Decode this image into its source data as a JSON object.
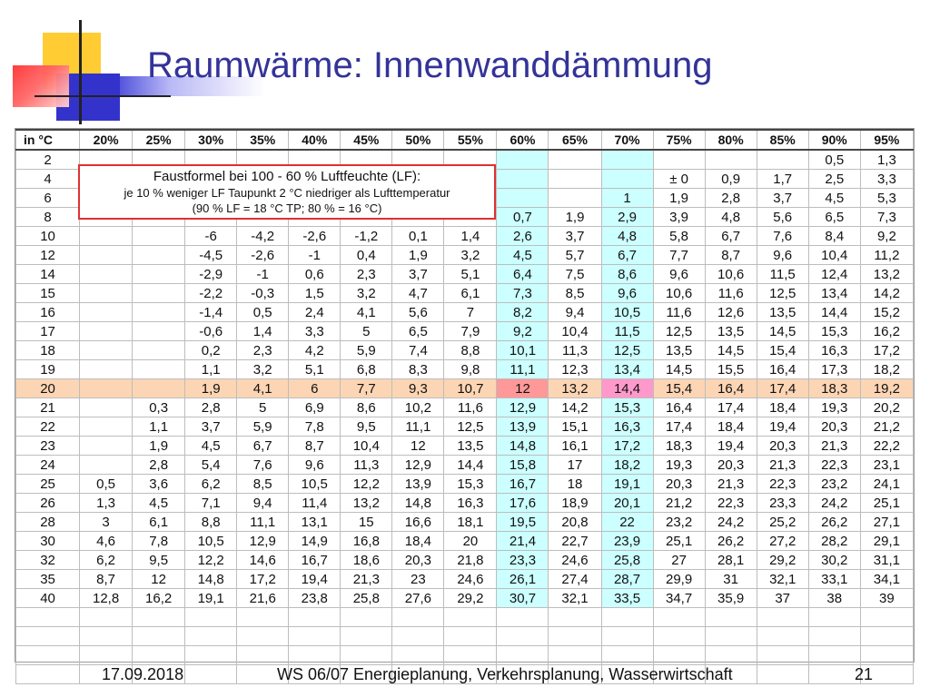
{
  "slide": {
    "title": "Raumwärme: Innenwanddämmung",
    "footer": {
      "date": "17.09.2018",
      "course": "WS 06/07 Energieplanung, Verkehrsplanung, Wasserwirtschaft",
      "page": "21"
    }
  },
  "annotation": {
    "line1": "Faustformel bei 100 -  60 % Luftfeuchte (LF):",
    "line2": "je 10 % weniger LF Taupunkt 2 °C niedriger als Lufttemperatur",
    "line3": "(90 % LF = 18 °C TP; 80 % = 16 °C)"
  },
  "table": {
    "corner": "in °C",
    "headers": [
      "20%",
      "25%",
      "30%",
      "35%",
      "40%",
      "45%",
      "50%",
      "55%",
      "60%",
      "65%",
      "70%",
      "75%",
      "80%",
      "85%",
      "90%",
      "95%"
    ],
    "highlight_row": "20",
    "rows": [
      {
        "t": "2",
        "v": [
          "",
          "",
          "",
          "",
          "",
          "",
          "",
          "",
          "",
          "",
          "",
          "",
          "",
          "",
          "0,5",
          "1,3"
        ]
      },
      {
        "t": "4",
        "v": [
          "",
          "",
          "",
          "",
          "",
          "",
          "",
          "",
          "",
          "",
          "",
          "± 0",
          "0,9",
          "1,7",
          "2,5",
          "3,3"
        ]
      },
      {
        "t": "6",
        "v": [
          "",
          "",
          "",
          "",
          "",
          "",
          "",
          "",
          "",
          "",
          "1",
          "1,9",
          "2,8",
          "3,7",
          "4,5",
          "5,3"
        ]
      },
      {
        "t": "8",
        "v": [
          "",
          "",
          "",
          "",
          "",
          "",
          "",
          "",
          "0,7",
          "1,9",
          "2,9",
          "3,9",
          "4,8",
          "5,6",
          "6,5",
          "7,3"
        ]
      },
      {
        "t": "10",
        "v": [
          "",
          "",
          "-6",
          "-4,2",
          "-2,6",
          "-1,2",
          "0,1",
          "1,4",
          "2,6",
          "3,7",
          "4,8",
          "5,8",
          "6,7",
          "7,6",
          "8,4",
          "9,2"
        ]
      },
      {
        "t": "12",
        "v": [
          "",
          "",
          "-4,5",
          "-2,6",
          "-1",
          "0,4",
          "1,9",
          "3,2",
          "4,5",
          "5,7",
          "6,7",
          "7,7",
          "8,7",
          "9,6",
          "10,4",
          "11,2"
        ]
      },
      {
        "t": "14",
        "v": [
          "",
          "",
          "-2,9",
          "-1",
          "0,6",
          "2,3",
          "3,7",
          "5,1",
          "6,4",
          "7,5",
          "8,6",
          "9,6",
          "10,6",
          "11,5",
          "12,4",
          "13,2"
        ]
      },
      {
        "t": "15",
        "v": [
          "",
          "",
          "-2,2",
          "-0,3",
          "1,5",
          "3,2",
          "4,7",
          "6,1",
          "7,3",
          "8,5",
          "9,6",
          "10,6",
          "11,6",
          "12,5",
          "13,4",
          "14,2"
        ]
      },
      {
        "t": "16",
        "v": [
          "",
          "",
          "-1,4",
          "0,5",
          "2,4",
          "4,1",
          "5,6",
          "7",
          "8,2",
          "9,4",
          "10,5",
          "11,6",
          "12,6",
          "13,5",
          "14,4",
          "15,2"
        ]
      },
      {
        "t": "17",
        "v": [
          "",
          "",
          "-0,6",
          "1,4",
          "3,3",
          "5",
          "6,5",
          "7,9",
          "9,2",
          "10,4",
          "11,5",
          "12,5",
          "13,5",
          "14,5",
          "15,3",
          "16,2"
        ]
      },
      {
        "t": "18",
        "v": [
          "",
          "",
          "0,2",
          "2,3",
          "4,2",
          "5,9",
          "7,4",
          "8,8",
          "10,1",
          "11,3",
          "12,5",
          "13,5",
          "14,5",
          "15,4",
          "16,3",
          "17,2"
        ]
      },
      {
        "t": "19",
        "v": [
          "",
          "",
          "1,1",
          "3,2",
          "5,1",
          "6,8",
          "8,3",
          "9,8",
          "11,1",
          "12,3",
          "13,4",
          "14,5",
          "15,5",
          "16,4",
          "17,3",
          "18,2"
        ]
      },
      {
        "t": "20",
        "v": [
          "",
          "",
          "1,9",
          "4,1",
          "6",
          "7,7",
          "9,3",
          "10,7",
          "12",
          "13,2",
          "14,4",
          "15,4",
          "16,4",
          "17,4",
          "18,3",
          "19,2"
        ]
      },
      {
        "t": "21",
        "v": [
          "",
          "0,3",
          "2,8",
          "5",
          "6,9",
          "8,6",
          "10,2",
          "11,6",
          "12,9",
          "14,2",
          "15,3",
          "16,4",
          "17,4",
          "18,4",
          "19,3",
          "20,2"
        ]
      },
      {
        "t": "22",
        "v": [
          "",
          "1,1",
          "3,7",
          "5,9",
          "7,8",
          "9,5",
          "11,1",
          "12,5",
          "13,9",
          "15,1",
          "16,3",
          "17,4",
          "18,4",
          "19,4",
          "20,3",
          "21,2"
        ]
      },
      {
        "t": "23",
        "v": [
          "",
          "1,9",
          "4,5",
          "6,7",
          "8,7",
          "10,4",
          "12",
          "13,5",
          "14,8",
          "16,1",
          "17,2",
          "18,3",
          "19,4",
          "20,3",
          "21,3",
          "22,2"
        ]
      },
      {
        "t": "24",
        "v": [
          "",
          "2,8",
          "5,4",
          "7,6",
          "9,6",
          "11,3",
          "12,9",
          "14,4",
          "15,8",
          "17",
          "18,2",
          "19,3",
          "20,3",
          "21,3",
          "22,3",
          "23,1"
        ]
      },
      {
        "t": "25",
        "v": [
          "0,5",
          "3,6",
          "6,2",
          "8,5",
          "10,5",
          "12,2",
          "13,9",
          "15,3",
          "16,7",
          "18",
          "19,1",
          "20,3",
          "21,3",
          "22,3",
          "23,2",
          "24,1"
        ]
      },
      {
        "t": "26",
        "v": [
          "1,3",
          "4,5",
          "7,1",
          "9,4",
          "11,4",
          "13,2",
          "14,8",
          "16,3",
          "17,6",
          "18,9",
          "20,1",
          "21,2",
          "22,3",
          "23,3",
          "24,2",
          "25,1"
        ]
      },
      {
        "t": "28",
        "v": [
          "3",
          "6,1",
          "8,8",
          "11,1",
          "13,1",
          "15",
          "16,6",
          "18,1",
          "19,5",
          "20,8",
          "22",
          "23,2",
          "24,2",
          "25,2",
          "26,2",
          "27,1"
        ]
      },
      {
        "t": "30",
        "v": [
          "4,6",
          "7,8",
          "10,5",
          "12,9",
          "14,9",
          "16,8",
          "18,4",
          "20",
          "21,4",
          "22,7",
          "23,9",
          "25,1",
          "26,2",
          "27,2",
          "28,2",
          "29,1"
        ]
      },
      {
        "t": "32",
        "v": [
          "6,2",
          "9,5",
          "12,2",
          "14,6",
          "16,7",
          "18,6",
          "20,3",
          "21,8",
          "23,3",
          "24,6",
          "25,8",
          "27",
          "28,1",
          "29,2",
          "30,2",
          "31,1"
        ]
      },
      {
        "t": "35",
        "v": [
          "8,7",
          "12",
          "14,8",
          "17,2",
          "19,4",
          "21,3",
          "23",
          "24,6",
          "26,1",
          "27,4",
          "28,7",
          "29,9",
          "31",
          "32,1",
          "33,1",
          "34,1"
        ]
      },
      {
        "t": "40",
        "v": [
          "12,8",
          "16,2",
          "19,1",
          "21,6",
          "23,8",
          "25,8",
          "27,6",
          "29,2",
          "30,7",
          "32,1",
          "33,5",
          "34,7",
          "35,9",
          "37",
          "38",
          "39"
        ]
      }
    ],
    "empty_rows": 4
  },
  "colors": {
    "title": "#333399",
    "cyan_column": "#ccffff",
    "highlight_row": "#fcd5b4",
    "highlight_60": "#ff9999",
    "highlight_70": "#ff99cc",
    "annotation_border": "#e03030"
  }
}
